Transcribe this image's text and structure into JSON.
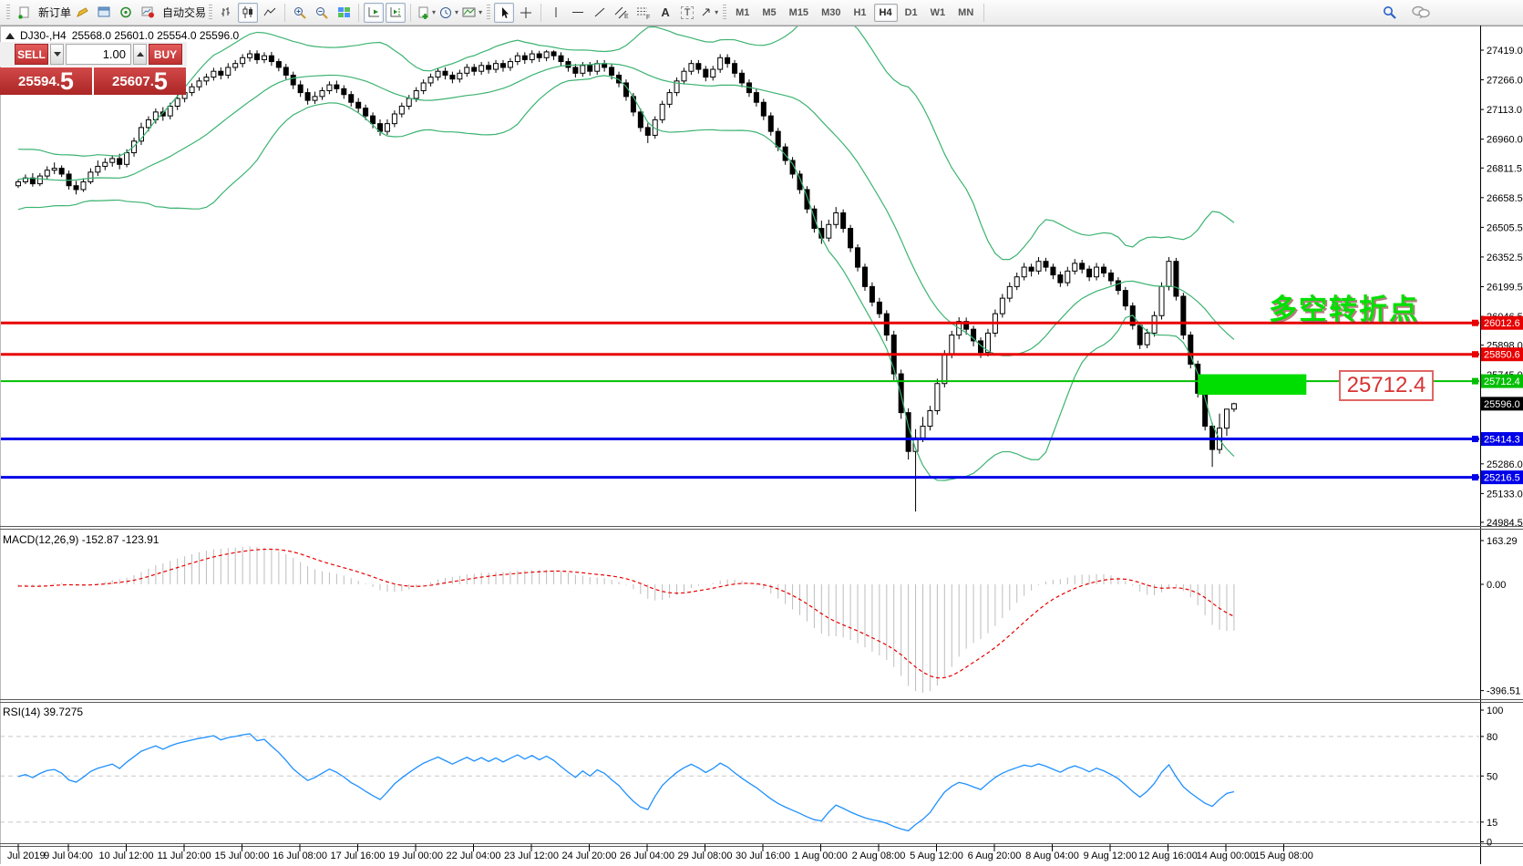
{
  "toolbar": {
    "new_order_label": "新订单",
    "auto_trading_label": "自动交易",
    "timeframes": [
      "M1",
      "M5",
      "M15",
      "M30",
      "H1",
      "H4",
      "D1",
      "W1",
      "MN"
    ],
    "active_timeframe": "H4",
    "drawing_tool_letters": {
      "channel": "E",
      "fibo": "F",
      "text": "A",
      "label": "T"
    }
  },
  "window_title": {
    "symbol_period": "DJ30-,H4",
    "ohlc": "25568.0 25601.0 25554.0 25596.0"
  },
  "one_click": {
    "sell": "SELL",
    "buy": "BUY",
    "volume": "1.00",
    "sell_price_big": "25594",
    "sell_price_sup": "5",
    "buy_price_big": "25607",
    "buy_price_sup": "5"
  },
  "main_labels": {
    "macd": "MACD(12,26,9) -152.87 -123.91",
    "rsi": "RSI(14) 39.7275",
    "annotation": "多空转折点",
    "callout": "25712.4"
  },
  "chart_data": {
    "type": "candlestick",
    "symbol": "DJ30-",
    "period": "H4",
    "current_bar": {
      "open": 25568.0,
      "high": 25601.0,
      "low": 25554.0,
      "close": 25596.0
    },
    "price_ticks": [
      "27419.0",
      "27266.0",
      "27113.0",
      "26960.0",
      "26811.5",
      "26658.5",
      "26505.5",
      "26352.5",
      "26199.5",
      "26046.5",
      "25898.0",
      "25745.0",
      "25286.0",
      "25133.0",
      "24984.5"
    ],
    "marked_levels": [
      {
        "label": "26012.6",
        "price": 26012.6,
        "color": "#e80000",
        "line_width": 3
      },
      {
        "label": "25850.6",
        "price": 25850.6,
        "color": "#e80000",
        "line_width": 3
      },
      {
        "label": "25712.4",
        "price": 25712.4,
        "color": "#00bf00",
        "line_width": 2
      },
      {
        "label": "25596.0",
        "price": 25596.0,
        "color": "#000000",
        "line_width": 0
      },
      {
        "label": "25414.3",
        "price": 25414.3,
        "color": "#0000e8",
        "line_width": 3
      },
      {
        "label": "25216.5",
        "price": 25216.5,
        "color": "#0000e8",
        "line_width": 3
      }
    ],
    "highlight_rect": {
      "price_top": 25748,
      "price_bottom": 25642,
      "bar_start": 163,
      "bar_end": 178,
      "color": "#00dd00"
    },
    "bollinger": {
      "period": 20,
      "deviation": 2,
      "color": "#3CB371"
    },
    "macd": {
      "fast": 12,
      "slow": 26,
      "signal": 9,
      "value": -152.87,
      "signal_value": -123.91,
      "axis_ticks": [
        "163.29",
        "0.00",
        "-396.51"
      ],
      "hist_color": "#bdbdbd",
      "signal_color": "#e80000"
    },
    "rsi": {
      "period": 14,
      "value": 39.7275,
      "levels": [
        80,
        50,
        15
      ],
      "axis_ticks": [
        "100",
        "80",
        "50",
        "15",
        "0"
      ],
      "color": "#1e90ff"
    },
    "time_labels": [
      "Jul 2019",
      "9 Jul 04:00",
      "10 Jul 12:00",
      "11 Jul 20:00",
      "15 Jul 00:00",
      "16 Jul 08:00",
      "17 Jul 16:00",
      "19 Jul 00:00",
      "22 Jul 04:00",
      "23 Jul 12:00",
      "24 Jul 20:00",
      "26 Jul 04:00",
      "29 Jul 08:00",
      "30 Jul 16:00",
      "1 Aug 00:00",
      "2 Aug 08:00",
      "5 Aug 12:00",
      "6 Aug 20:00",
      "8 Aug 04:00",
      "9 Aug 12:00",
      "12 Aug 16:00",
      "14 Aug 00:00",
      "15 Aug 08:00"
    ],
    "candles": [
      [
        26720,
        26752,
        26708,
        26740
      ],
      [
        26740,
        26778,
        26728,
        26760
      ],
      [
        26760,
        26785,
        26715,
        26730
      ],
      [
        26730,
        26785,
        26718,
        26770
      ],
      [
        26770,
        26820,
        26750,
        26800
      ],
      [
        26800,
        26840,
        26780,
        26810
      ],
      [
        26810,
        26825,
        26765,
        26780
      ],
      [
        26780,
        26798,
        26700,
        26720
      ],
      [
        26720,
        26745,
        26675,
        26700
      ],
      [
        26700,
        26758,
        26688,
        26740
      ],
      [
        26740,
        26810,
        26728,
        26790
      ],
      [
        26790,
        26850,
        26770,
        26820
      ],
      [
        26820,
        26862,
        26800,
        26840
      ],
      [
        26840,
        26878,
        26818,
        26860
      ],
      [
        26860,
        26885,
        26805,
        26830
      ],
      [
        26830,
        26908,
        26815,
        26890
      ],
      [
        26890,
        26968,
        26870,
        26950
      ],
      [
        26950,
        27045,
        26930,
        27020
      ],
      [
        27020,
        27078,
        27000,
        27060
      ],
      [
        27060,
        27118,
        27040,
        27100
      ],
      [
        27100,
        27125,
        27055,
        27080
      ],
      [
        27080,
        27148,
        27062,
        27130
      ],
      [
        27130,
        27188,
        27110,
        27170
      ],
      [
        27170,
        27222,
        27150,
        27200
      ],
      [
        27200,
        27248,
        27182,
        27230
      ],
      [
        27230,
        27278,
        27210,
        27260
      ],
      [
        27260,
        27298,
        27238,
        27280
      ],
      [
        27280,
        27328,
        27262,
        27310
      ],
      [
        27310,
        27330,
        27268,
        27290
      ],
      [
        27290,
        27352,
        27272,
        27330
      ],
      [
        27330,
        27368,
        27312,
        27350
      ],
      [
        27350,
        27398,
        27330,
        27380
      ],
      [
        27380,
        27419,
        27360,
        27400
      ],
      [
        27400,
        27418,
        27348,
        27370
      ],
      [
        27370,
        27408,
        27352,
        27390
      ],
      [
        27390,
        27410,
        27338,
        27360
      ],
      [
        27360,
        27375,
        27310,
        27330
      ],
      [
        27330,
        27348,
        27268,
        27290
      ],
      [
        27290,
        27308,
        27218,
        27240
      ],
      [
        27240,
        27262,
        27178,
        27200
      ],
      [
        27200,
        27222,
        27138,
        27160
      ],
      [
        27160,
        27205,
        27142,
        27180
      ],
      [
        27180,
        27228,
        27162,
        27210
      ],
      [
        27210,
        27258,
        27192,
        27240
      ],
      [
        27240,
        27262,
        27198,
        27220
      ],
      [
        27220,
        27238,
        27168,
        27190
      ],
      [
        27190,
        27208,
        27128,
        27150
      ],
      [
        27150,
        27172,
        27098,
        27120
      ],
      [
        27120,
        27138,
        27058,
        27080
      ],
      [
        27080,
        27098,
        27016,
        27040
      ],
      [
        27040,
        27062,
        26978,
        27000
      ],
      [
        27000,
        27062,
        26982,
        27040
      ],
      [
        27040,
        27108,
        27022,
        27090
      ],
      [
        27090,
        27148,
        27072,
        27130
      ],
      [
        27130,
        27188,
        27112,
        27170
      ],
      [
        27170,
        27228,
        27152,
        27210
      ],
      [
        27210,
        27268,
        27192,
        27250
      ],
      [
        27250,
        27298,
        27232,
        27280
      ],
      [
        27280,
        27328,
        27262,
        27310
      ],
      [
        27310,
        27330,
        27268,
        27290
      ],
      [
        27290,
        27308,
        27248,
        27270
      ],
      [
        27270,
        27318,
        27252,
        27300
      ],
      [
        27300,
        27348,
        27282,
        27330
      ],
      [
        27330,
        27348,
        27288,
        27310
      ],
      [
        27310,
        27358,
        27292,
        27340
      ],
      [
        27340,
        27360,
        27298,
        27320
      ],
      [
        27320,
        27368,
        27302,
        27350
      ],
      [
        27350,
        27368,
        27308,
        27330
      ],
      [
        27330,
        27378,
        27312,
        27360
      ],
      [
        27360,
        27408,
        27342,
        27390
      ],
      [
        27390,
        27408,
        27348,
        27370
      ],
      [
        27370,
        27418,
        27352,
        27400
      ],
      [
        27400,
        27415,
        27358,
        27380
      ],
      [
        27380,
        27419,
        27362,
        27410
      ],
      [
        27410,
        27418,
        27368,
        27390
      ],
      [
        27390,
        27408,
        27338,
        27360
      ],
      [
        27360,
        27378,
        27308,
        27330
      ],
      [
        27330,
        27348,
        27278,
        27300
      ],
      [
        27300,
        27358,
        27282,
        27340
      ],
      [
        27340,
        27358,
        27288,
        27310
      ],
      [
        27310,
        27368,
        27292,
        27350
      ],
      [
        27350,
        27368,
        27308,
        27330
      ],
      [
        27330,
        27348,
        27268,
        27290
      ],
      [
        27290,
        27308,
        27228,
        27250
      ],
      [
        27250,
        27268,
        27158,
        27180
      ],
      [
        27180,
        27198,
        27078,
        27100
      ],
      [
        27100,
        27118,
        26998,
        27020
      ],
      [
        27020,
        27042,
        26940,
        26980
      ],
      [
        26980,
        27078,
        26962,
        27060
      ],
      [
        27060,
        27158,
        27042,
        27140
      ],
      [
        27140,
        27218,
        27122,
        27200
      ],
      [
        27200,
        27278,
        27182,
        27260
      ],
      [
        27260,
        27328,
        27242,
        27310
      ],
      [
        27310,
        27368,
        27292,
        27350
      ],
      [
        27350,
        27368,
        27298,
        27320
      ],
      [
        27320,
        27338,
        27258,
        27280
      ],
      [
        27280,
        27338,
        27262,
        27320
      ],
      [
        27320,
        27398,
        27302,
        27380
      ],
      [
        27380,
        27398,
        27328,
        27350
      ],
      [
        27350,
        27368,
        27278,
        27300
      ],
      [
        27300,
        27318,
        27228,
        27250
      ],
      [
        27250,
        27268,
        27178,
        27200
      ],
      [
        27200,
        27218,
        27128,
        27150
      ],
      [
        27150,
        27168,
        27058,
        27080
      ],
      [
        27080,
        27098,
        26978,
        27000
      ],
      [
        27000,
        27018,
        26898,
        26920
      ],
      [
        26920,
        26938,
        26828,
        26850
      ],
      [
        26850,
        26868,
        26758,
        26780
      ],
      [
        26780,
        26798,
        26678,
        26700
      ],
      [
        26700,
        26718,
        26578,
        26600
      ],
      [
        26600,
        26618,
        26478,
        26500
      ],
      [
        26500,
        26540,
        26420,
        26450
      ],
      [
        26450,
        26545,
        26432,
        26520
      ],
      [
        26520,
        26610,
        26500,
        26580
      ],
      [
        26580,
        26598,
        26478,
        26500
      ],
      [
        26500,
        26518,
        26378,
        26400
      ],
      [
        26400,
        26418,
        26278,
        26300
      ],
      [
        26300,
        26318,
        26178,
        26200
      ],
      [
        26200,
        26222,
        26098,
        26120
      ],
      [
        26120,
        26142,
        26038,
        26060
      ],
      [
        26060,
        26078,
        25920,
        25950
      ],
      [
        25950,
        25972,
        25718,
        25750
      ],
      [
        25750,
        25772,
        25518,
        25550
      ],
      [
        25550,
        25572,
        25308,
        25350
      ],
      [
        25350,
        25465,
        25040,
        25420
      ],
      [
        25420,
        25528,
        25398,
        25480
      ],
      [
        25480,
        25585,
        25458,
        25560
      ],
      [
        25560,
        25725,
        25540,
        25700
      ],
      [
        25700,
        25872,
        25680,
        25850
      ],
      [
        25850,
        25972,
        25830,
        25950
      ],
      [
        25950,
        26042,
        25928,
        26020
      ],
      [
        26020,
        26040,
        25952,
        25980
      ],
      [
        25980,
        25998,
        25892,
        25920
      ],
      [
        25920,
        25938,
        25832,
        25860
      ],
      [
        25860,
        25982,
        25840,
        25960
      ],
      [
        25960,
        26082,
        25940,
        26060
      ],
      [
        26060,
        26162,
        26040,
        26140
      ],
      [
        26140,
        26222,
        26120,
        26200
      ],
      [
        26200,
        26272,
        26182,
        26250
      ],
      [
        26250,
        26322,
        26232,
        26300
      ],
      [
        26300,
        26318,
        26252,
        26280
      ],
      [
        26280,
        26352,
        26262,
        26330
      ],
      [
        26330,
        26348,
        26278,
        26300
      ],
      [
        26300,
        26318,
        26238,
        26260
      ],
      [
        26260,
        26278,
        26198,
        26220
      ],
      [
        26220,
        26302,
        26202,
        26280
      ],
      [
        26280,
        26342,
        26262,
        26320
      ],
      [
        26320,
        26338,
        26268,
        26290
      ],
      [
        26290,
        26308,
        26228,
        26250
      ],
      [
        26250,
        26322,
        26232,
        26300
      ],
      [
        26300,
        26318,
        26248,
        26270
      ],
      [
        26270,
        26288,
        26208,
        26230
      ],
      [
        26230,
        26248,
        26158,
        26180
      ],
      [
        26180,
        26198,
        26078,
        26100
      ],
      [
        26100,
        26118,
        25978,
        26000
      ],
      [
        26000,
        26018,
        25878,
        25900
      ],
      [
        25900,
        25982,
        25882,
        25960
      ],
      [
        25960,
        26072,
        25942,
        26050
      ],
      [
        26050,
        26222,
        26030,
        26200
      ],
      [
        26200,
        26352,
        26180,
        26330
      ],
      [
        26330,
        26348,
        26128,
        26150
      ],
      [
        26150,
        26168,
        25928,
        25950
      ],
      [
        25950,
        25968,
        25778,
        25800
      ],
      [
        25800,
        25818,
        25628,
        25650
      ],
      [
        25650,
        25668,
        25458,
        25480
      ],
      [
        25480,
        25498,
        25270,
        25360
      ],
      [
        25360,
        25545,
        25338,
        25470
      ],
      [
        25470,
        25540,
        25430,
        25568
      ],
      [
        25568,
        25601,
        25554,
        25596
      ]
    ]
  }
}
